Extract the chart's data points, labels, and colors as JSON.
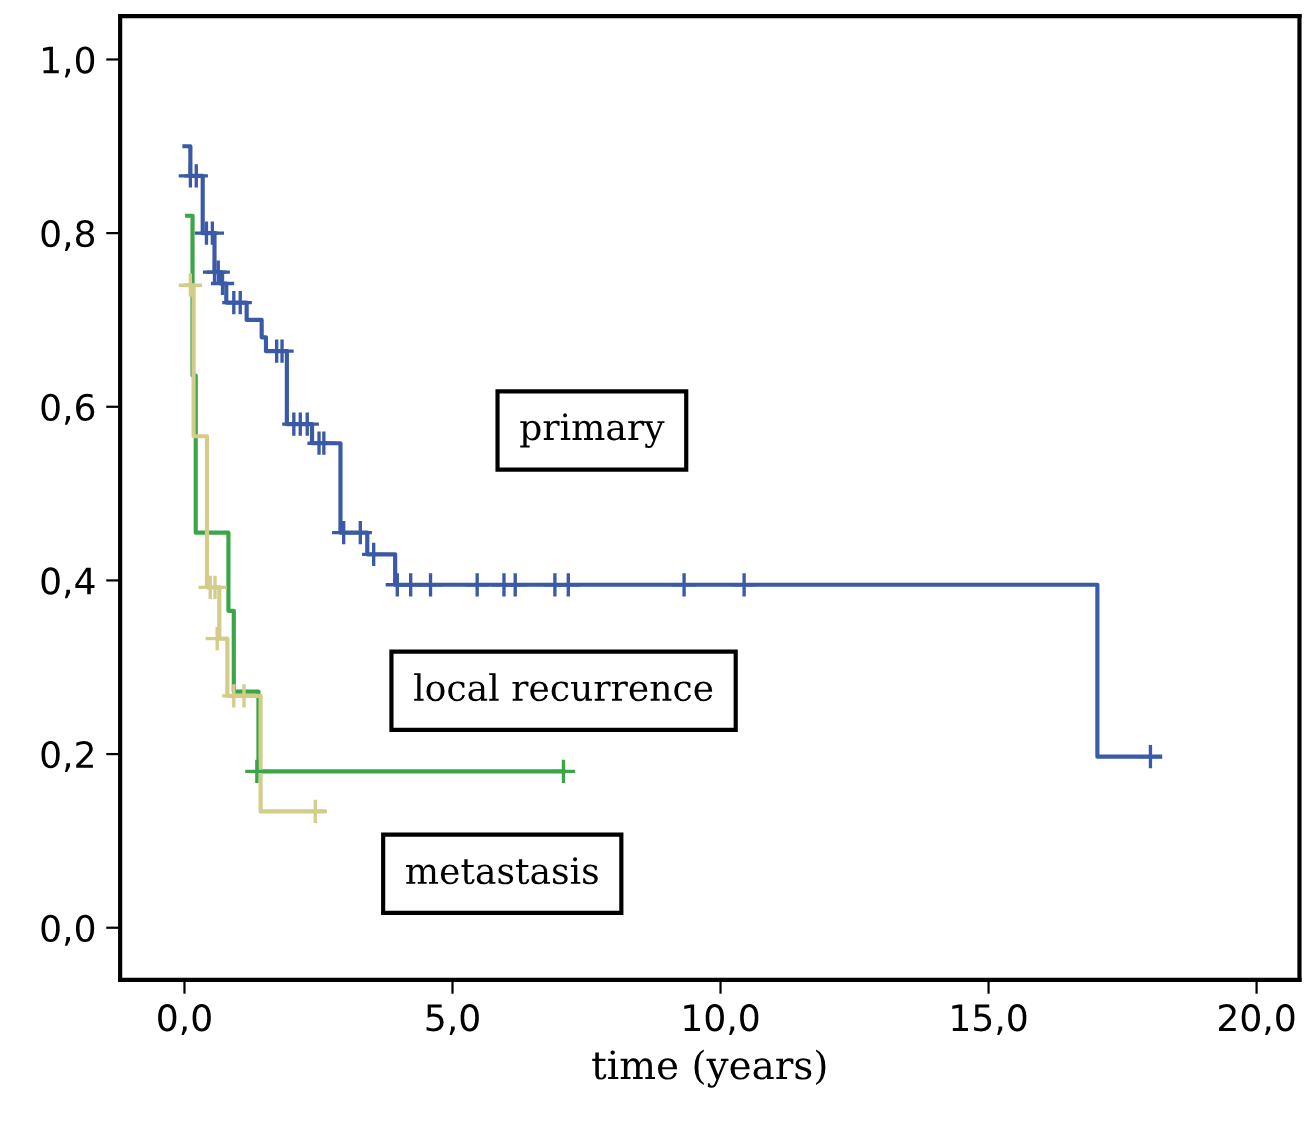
{
  "chart_data": {
    "type": "step",
    "xlabel": "time (years)",
    "xlim": [
      -1.2,
      20.8
    ],
    "ylim": [
      -0.06,
      1.05
    ],
    "xticks": [
      {
        "value": 0,
        "label": "0,0"
      },
      {
        "value": 5,
        "label": "5,0"
      },
      {
        "value": 10,
        "label": "10,0"
      },
      {
        "value": 15,
        "label": "15,0"
      },
      {
        "value": 20,
        "label": "20,0"
      }
    ],
    "yticks": [
      {
        "value": 0,
        "label": "0,0"
      },
      {
        "value": 0.2,
        "label": "0,2"
      },
      {
        "value": 0.4,
        "label": "0,4"
      },
      {
        "value": 0.6,
        "label": "0,6"
      },
      {
        "value": 0.8,
        "label": "0,8"
      },
      {
        "value": 1.0,
        "label": "1,0"
      }
    ],
    "grid": false,
    "legend": false,
    "annotations": [
      "primary",
      "local recurrence",
      "metastasis"
    ],
    "series": [
      {
        "color": "#3a59a6",
        "x": [
          0,
          0.11,
          0.34,
          0.56,
          0.67,
          0.78,
          1.16,
          1.44,
          1.52,
          1.91,
          2.38,
          2.91,
          3.41,
          3.93,
          17.03,
          18.2
        ],
        "values": [
          0.9,
          0.866,
          0.8,
          0.755,
          0.742,
          0.72,
          0.7,
          0.68,
          0.664,
          0.58,
          0.558,
          0.455,
          0.43,
          0.395,
          0.197,
          0.197
        ]
      },
      {
        "color": "#3aa648",
        "x": [
          0.05,
          0.15,
          0.21,
          0.82,
          0.92,
          1.38,
          7.07
        ],
        "values": [
          0.82,
          0.636,
          0.455,
          0.365,
          0.272,
          0.18,
          0.18
        ]
      },
      {
        "color": "#d4cc8a",
        "x": [
          0.03,
          0.17,
          0.42,
          0.65,
          0.8,
          1.42,
          2.6
        ],
        "values": [
          0.74,
          0.566,
          0.392,
          0.333,
          0.267,
          0.134,
          0.134
        ]
      },
      {
        "type": "scatter",
        "marker": "cross",
        "color": "#3a59a6",
        "x": [
          0.11,
          0.22,
          0.41,
          0.52,
          0.56,
          0.63,
          0.71,
          0.92,
          1.04,
          1.72,
          1.82,
          2.04,
          2.16,
          2.29,
          2.51,
          2.6,
          2.97,
          3.28,
          3.53,
          3.97,
          4.22,
          4.59,
          5.46,
          5.96,
          6.17,
          6.91,
          7.16,
          9.32,
          10.44,
          18.02
        ],
        "values": [
          0.866,
          0.866,
          0.8,
          0.8,
          0.755,
          0.755,
          0.742,
          0.72,
          0.72,
          0.664,
          0.664,
          0.58,
          0.58,
          0.58,
          0.558,
          0.558,
          0.455,
          0.455,
          0.43,
          0.395,
          0.395,
          0.395,
          0.395,
          0.395,
          0.395,
          0.395,
          0.395,
          0.395,
          0.395,
          0.197
        ]
      },
      {
        "type": "scatter",
        "marker": "cross",
        "color": "#3aa648",
        "x": [
          1.35,
          7.07
        ],
        "values": [
          0.18,
          0.18
        ]
      },
      {
        "type": "scatter",
        "marker": "cross",
        "color": "#d4cc8a",
        "x": [
          0.11,
          0.48,
          0.57,
          0.61,
          0.92,
          1.11,
          2.44
        ],
        "values": [
          0.74,
          0.392,
          0.392,
          0.333,
          0.267,
          0.267,
          0.134
        ]
      }
    ]
  }
}
